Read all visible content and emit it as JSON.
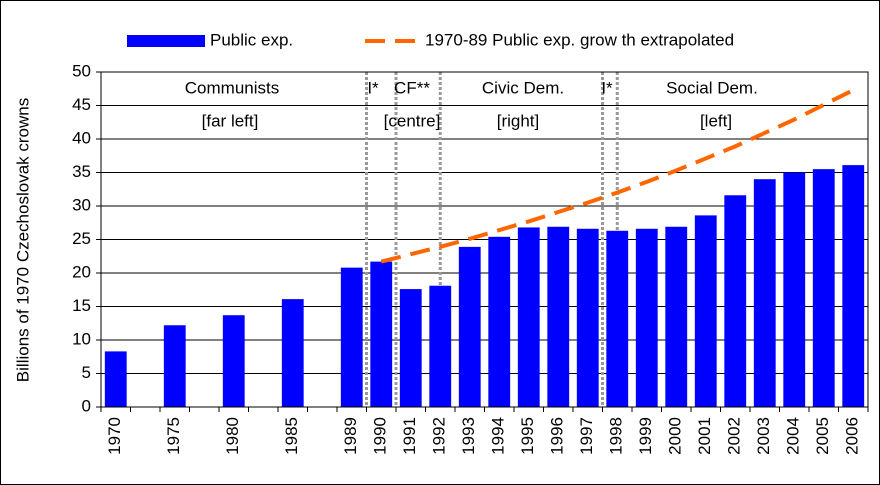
{
  "chart_data": {
    "type": "bar",
    "y_label": "Billions of 1970 Czechoslovak crowns",
    "categories": [
      "1970",
      null,
      "1975",
      null,
      "1980",
      null,
      "1985",
      null,
      "1989",
      "1990",
      "1991",
      "1992",
      "1993",
      "1994",
      "1995",
      "1996",
      "1997",
      "1998",
      "1999",
      "2000",
      "2001",
      "2002",
      "2003",
      "2004",
      "2005",
      "2006"
    ],
    "series": [
      {
        "name": "Public exp.",
        "type": "bar",
        "color": "#0000ff",
        "values": [
          8.3,
          null,
          12.2,
          null,
          13.7,
          null,
          16.1,
          null,
          20.8,
          21.7,
          17.6,
          18.1,
          23.9,
          25.4,
          26.8,
          26.9,
          26.6,
          26.3,
          26.6,
          26.9,
          28.6,
          31.6,
          34.0,
          35.0,
          35.5,
          36.1
        ]
      },
      {
        "name": "1970-89 Public exp. grow th extrapolated",
        "type": "line",
        "color": "#ff6600",
        "dashed": true,
        "values": [
          null,
          null,
          null,
          null,
          null,
          null,
          null,
          null,
          null,
          21.7,
          22.8,
          23.9,
          25.1,
          26.4,
          27.7,
          29.1,
          30.5,
          32.0,
          33.6,
          35.3,
          37.1,
          38.9,
          40.9,
          42.9,
          45.1,
          47.3
        ]
      }
    ],
    "annotations": [
      "Communists",
      "[far left]",
      "I*",
      "CF**",
      "[centre]",
      "Civic Dem.",
      "[right]",
      "I*",
      "Social Dem.",
      "[left]"
    ],
    "ylim": [
      0,
      50
    ],
    "yticks": [
      0,
      5,
      10,
      15,
      20,
      25,
      30,
      35,
      40,
      45,
      50
    ],
    "grid": true,
    "legend": "top"
  }
}
